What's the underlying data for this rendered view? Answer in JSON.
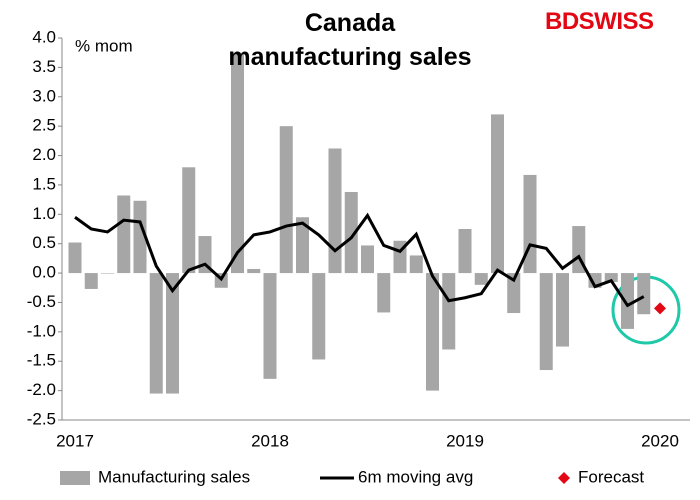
{
  "chart_data": {
    "type": "bar_line",
    "title": "Canada manufacturing sales",
    "logo": "BDSWISS",
    "y_label": "% mom",
    "categories": [
      "2017",
      null,
      null,
      null,
      null,
      null,
      null,
      null,
      null,
      null,
      null,
      null,
      "2018",
      null,
      null,
      null,
      null,
      null,
      null,
      null,
      null,
      null,
      null,
      null,
      "2019",
      null,
      null,
      null,
      null,
      null,
      null,
      null,
      null,
      null,
      null,
      null,
      "2020"
    ],
    "series": [
      {
        "name": "Manufacturing sales",
        "type": "bar",
        "color": "#a6a6a6",
        "values": [
          0.52,
          -0.27,
          0.0,
          1.32,
          1.23,
          -2.05,
          -2.05,
          1.8,
          0.63,
          -0.25,
          3.75,
          0.07,
          -1.8,
          2.5,
          0.95,
          -1.47,
          2.12,
          1.38,
          0.47,
          -0.67,
          0.55,
          0.3,
          -2.0,
          -1.3,
          0.75,
          -0.2,
          2.7,
          -0.68,
          1.67,
          -1.65,
          -1.25,
          0.8,
          -0.25,
          -0.15,
          -0.95,
          -0.7,
          null
        ]
      },
      {
        "name": "6m moving avg",
        "type": "line",
        "color": "#000000",
        "values": [
          0.95,
          0.75,
          0.7,
          0.9,
          0.87,
          0.12,
          -0.3,
          0.05,
          0.15,
          -0.1,
          0.35,
          0.65,
          0.7,
          0.8,
          0.85,
          0.65,
          0.38,
          0.6,
          0.98,
          0.47,
          0.37,
          0.66,
          -0.05,
          -0.47,
          -0.42,
          -0.35,
          0.05,
          -0.12,
          0.48,
          0.42,
          0.08,
          0.28,
          -0.23,
          -0.13,
          -0.55,
          -0.4,
          null
        ]
      },
      {
        "name": "Forecast",
        "type": "point",
        "color": "#e30613",
        "values": [
          null,
          null,
          null,
          null,
          null,
          null,
          null,
          null,
          null,
          null,
          null,
          null,
          null,
          null,
          null,
          null,
          null,
          null,
          null,
          null,
          null,
          null,
          null,
          null,
          null,
          null,
          null,
          null,
          null,
          null,
          null,
          null,
          null,
          null,
          null,
          null,
          -0.6
        ]
      }
    ],
    "ylim": [
      -2.5,
      4.0
    ],
    "yticks": [
      {
        "value": -2.5,
        "label": "-2.5"
      },
      {
        "value": -2,
        "label": "-2.0"
      },
      -1.5,
      {
        "value": -1,
        "label": "-1.0"
      },
      -0.5,
      {
        "value": 0,
        "label": "0.0"
      },
      0.5,
      {
        "value": 1,
        "label": "1.0"
      },
      1.5,
      {
        "value": 2,
        "label": "2.0"
      },
      2.5,
      {
        "value": 3,
        "label": "3.0"
      },
      3.5,
      {
        "value": 4,
        "label": "4.0"
      }
    ],
    "grid": false
  }
}
